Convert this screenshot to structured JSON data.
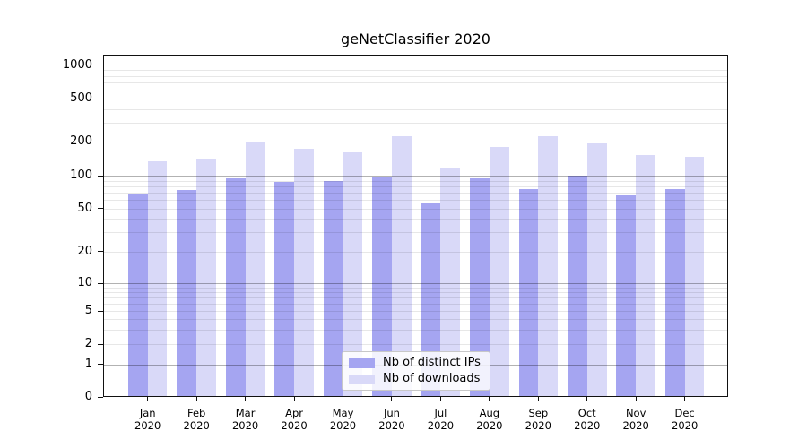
{
  "title": "geNetClassifier 2020",
  "chart_data": {
    "type": "bar",
    "title": "geNetClassifier 2020",
    "categories": [
      "Jan",
      "Feb",
      "Mar",
      "Apr",
      "May",
      "Jun",
      "Jul",
      "Aug",
      "Sep",
      "Oct",
      "Nov",
      "Dec"
    ],
    "x_year_label": "2020",
    "series": [
      {
        "name": "Nb of distinct IPs",
        "color": "#a5a5f1",
        "values": [
          68,
          74,
          95,
          87,
          90,
          97,
          56,
          94,
          75,
          100,
          66,
          76
        ]
      },
      {
        "name": "Nb of downloads",
        "color": "#d9d9f8",
        "values": [
          134,
          142,
          197,
          175,
          162,
          224,
          117,
          179,
          226,
          193,
          152,
          148
        ]
      }
    ],
    "xlabel": "",
    "ylabel": "",
    "ylim": [
      0,
      1000
    ],
    "yticks": [
      0,
      1,
      2,
      5,
      10,
      20,
      50,
      100,
      200,
      500,
      1000
    ],
    "yscale": "log-like (0 baseline, log above 10)",
    "grid": "both (minor log gridlines on)",
    "legend_position": "lower center"
  },
  "legend": {
    "items": [
      {
        "label": "Nb of distinct IPs"
      },
      {
        "label": "Nb of downloads"
      }
    ]
  }
}
